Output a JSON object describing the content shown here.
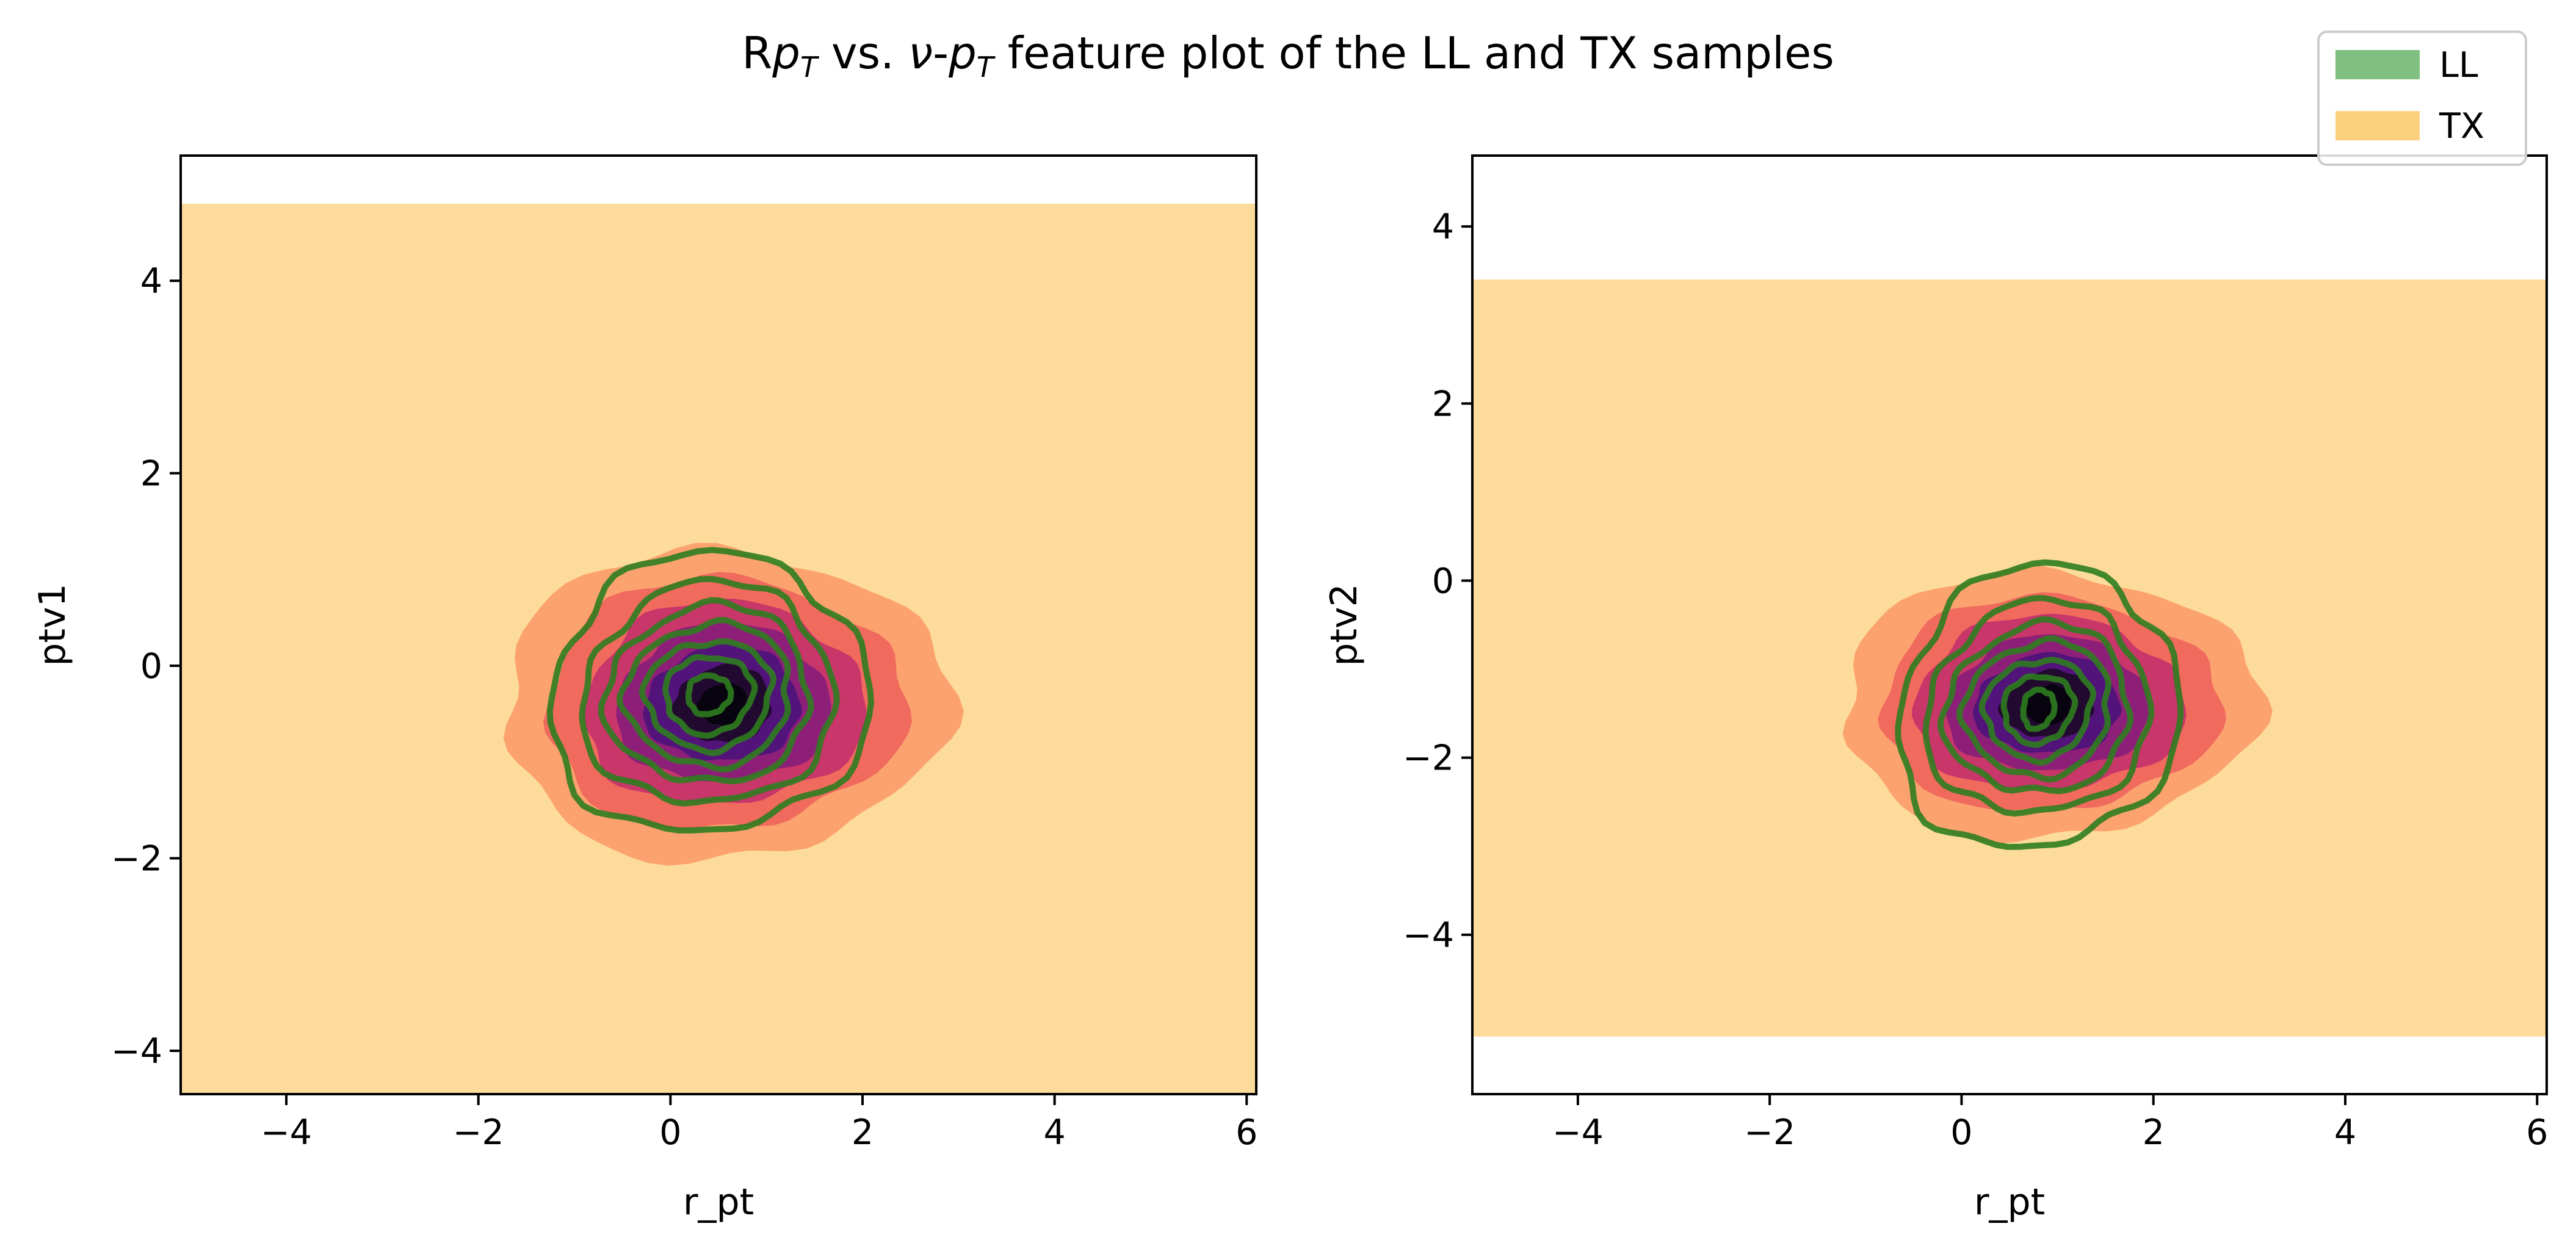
{
  "figure": {
    "title_main": "R",
    "title_pt": "p",
    "title_T": "T",
    "title_mid": " vs. ",
    "title_nu": "ν",
    "title_dash": "-",
    "title_rest": " feature plot of the LL and TX samples"
  },
  "legend": {
    "location": "upper right",
    "entries": [
      {
        "label": "LL",
        "color": "#7fbf7f"
      },
      {
        "label": "TX",
        "color": "#fdd080"
      }
    ]
  },
  "colors": {
    "tx_fill": "#fddb9a",
    "tx_levels": [
      "#fca26e",
      "#f06a5e",
      "#c8366a",
      "#8e1f79",
      "#52137a",
      "#22092f",
      "#070410"
    ],
    "ll_line": "#2e7d1f"
  },
  "chart_data": [
    {
      "type": "contour",
      "title": "",
      "xlabel": "r_pt",
      "ylabel": "ptv1",
      "xlim": [
        -5.1,
        6.1
      ],
      "ylim": [
        -4.45,
        5.3
      ],
      "xticks": [
        -4,
        -2,
        0,
        2,
        4,
        6
      ],
      "yticks": [
        -4,
        -2,
        0,
        2,
        4
      ],
      "xtick_labels": [
        "−4",
        "−2",
        "0",
        "2",
        "4",
        "6"
      ],
      "ytick_labels": [
        "−4",
        "−2",
        "0",
        "2",
        "4"
      ],
      "series": [
        {
          "name": "TX",
          "kind": "filled_density",
          "extent": {
            "x": [
              -5.1,
              6.1
            ],
            "y": [
              -4.45,
              4.8
            ]
          },
          "center": [
            0.55,
            -0.4
          ],
          "levels": [
            {
              "rx": 2.3,
              "ry": 1.6
            },
            {
              "rx": 1.85,
              "ry": 1.3
            },
            {
              "rx": 1.45,
              "ry": 1.05
            },
            {
              "rx": 1.1,
              "ry": 0.82
            },
            {
              "rx": 0.8,
              "ry": 0.6
            },
            {
              "rx": 0.5,
              "ry": 0.4
            },
            {
              "rx": 0.25,
              "ry": 0.22
            }
          ]
        },
        {
          "name": "LL",
          "kind": "line_contours",
          "center": [
            0.4,
            -0.3
          ],
          "levels": [
            {
              "rx": 1.65,
              "ry": 1.45
            },
            {
              "rx": 1.3,
              "ry": 1.15
            },
            {
              "rx": 1.05,
              "ry": 0.92
            },
            {
              "rx": 0.85,
              "ry": 0.74
            },
            {
              "rx": 0.65,
              "ry": 0.56
            },
            {
              "rx": 0.45,
              "ry": 0.4
            },
            {
              "rx": 0.22,
              "ry": 0.2
            }
          ]
        }
      ]
    },
    {
      "type": "contour",
      "title": "",
      "xlabel": "r_pt",
      "ylabel": "ptv2",
      "xlim": [
        -5.1,
        6.1
      ],
      "ylim": [
        -5.8,
        4.8
      ],
      "xticks": [
        -4,
        -2,
        0,
        2,
        4,
        6
      ],
      "yticks": [
        -4,
        -2,
        0,
        2,
        4
      ],
      "xtick_labels": [
        "−4",
        "−2",
        "0",
        "2",
        "4",
        "6"
      ],
      "ytick_labels": [
        "−4",
        "−2",
        "0",
        "2",
        "4"
      ],
      "series": [
        {
          "name": "TX",
          "kind": "filled_density",
          "extent": {
            "x": [
              -5.1,
              6.1
            ],
            "y": [
              -5.15,
              3.4
            ]
          },
          "center": [
            0.9,
            -1.4
          ],
          "levels": [
            {
              "rx": 2.15,
              "ry": 1.5
            },
            {
              "rx": 1.75,
              "ry": 1.2
            },
            {
              "rx": 1.4,
              "ry": 0.98
            },
            {
              "rx": 1.05,
              "ry": 0.76
            },
            {
              "rx": 0.75,
              "ry": 0.56
            },
            {
              "rx": 0.48,
              "ry": 0.38
            },
            {
              "rx": 0.25,
              "ry": 0.22
            }
          ]
        },
        {
          "name": "LL",
          "kind": "line_contours",
          "center": [
            0.8,
            -1.45
          ],
          "levels": [
            {
              "rx": 1.45,
              "ry": 1.6
            },
            {
              "rx": 1.15,
              "ry": 1.2
            },
            {
              "rx": 0.95,
              "ry": 0.95
            },
            {
              "rx": 0.75,
              "ry": 0.76
            },
            {
              "rx": 0.55,
              "ry": 0.56
            },
            {
              "rx": 0.36,
              "ry": 0.38
            },
            {
              "rx": 0.16,
              "ry": 0.22
            }
          ]
        }
      ]
    }
  ]
}
